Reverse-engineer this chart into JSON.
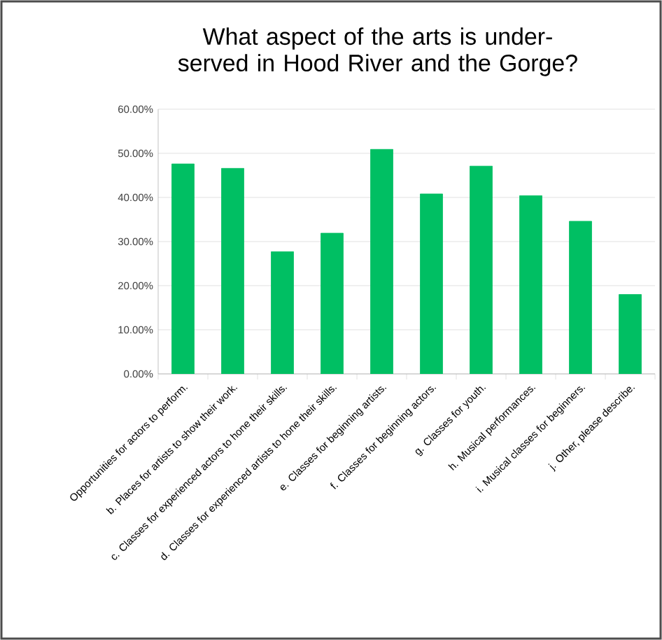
{
  "chart_data": {
    "type": "bar",
    "title": "What aspect of the arts is under-served in Hood River and the Gorge?",
    "categories": [
      "Opportunities for actors to perform.",
      "b. Places for artists to show their work.",
      "c. Classes for experienced actors to hone their skills.",
      "d. Classes for experienced artists to hone their skills.",
      "e. Classes for beginning artists.",
      "f. Classes for beginning actors.",
      "g. Classes for youth.",
      "h. Musical performances.",
      "i. Musical classes for beginners.",
      "j. Other, please describe."
    ],
    "values": [
      47.6,
      46.6,
      27.7,
      31.9,
      50.9,
      40.8,
      47.1,
      40.4,
      34.6,
      18.0
    ],
    "color": "#00bf63",
    "ylim": [
      0,
      60
    ],
    "yticks": [
      {
        "value": 0,
        "label": "0.00%"
      },
      {
        "value": 10,
        "label": "10.00%"
      },
      {
        "value": 20,
        "label": "20.00%"
      },
      {
        "value": 30,
        "label": "30.00%"
      },
      {
        "value": 40,
        "label": "40.00%"
      },
      {
        "value": 50,
        "label": "50.00%"
      },
      {
        "value": 60,
        "label": "60.00%"
      }
    ],
    "grid": "y"
  }
}
